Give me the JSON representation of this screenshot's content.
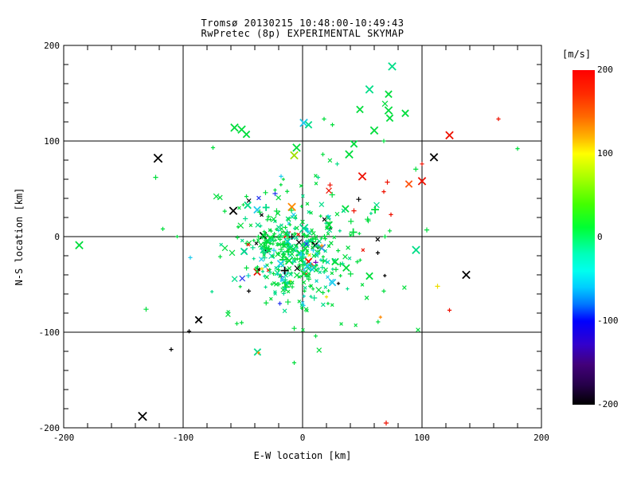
{
  "window": {
    "background": "#ffffff",
    "foreground": "#000000"
  },
  "title": {
    "line1": "Tromsø 20130215 10:48:00-10:49:43",
    "line2": "RwPretec (8p) EXPERIMENTAL SKYMAP"
  },
  "chart_data": {
    "type": "scatter",
    "title": "Tromsø 20130215 10:48:00-10:49:43",
    "subtitle": "RwPretec (8p) EXPERIMENTAL SKYMAP",
    "xlabel": "E-W location [km]",
    "ylabel": "N-S location [km]",
    "xlim": [
      -200,
      200
    ],
    "ylim": [
      -200,
      200
    ],
    "x_ticks": [
      -200,
      -100,
      0,
      100,
      200
    ],
    "y_ticks": [
      -200,
      -100,
      0,
      100,
      200
    ],
    "minor_tick_step": 20,
    "gridlines_at": [
      -100,
      0,
      100
    ],
    "grid": true,
    "legend_position": "right colorbar",
    "colorbar": {
      "unit": "[m/s]",
      "min": -200,
      "max": 200,
      "ticks": [
        200,
        100,
        0,
        -100,
        -200
      ],
      "stops": [
        [
          0.0,
          "#ff0000"
        ],
        [
          0.07,
          "#ff2a00"
        ],
        [
          0.14,
          "#ff6a00"
        ],
        [
          0.2,
          "#ffb300"
        ],
        [
          0.25,
          "#ffff00"
        ],
        [
          0.32,
          "#aaff00"
        ],
        [
          0.4,
          "#44ff00"
        ],
        [
          0.47,
          "#00ff33"
        ],
        [
          0.5,
          "#00ff66"
        ],
        [
          0.55,
          "#00ffbb"
        ],
        [
          0.6,
          "#00ffee"
        ],
        [
          0.65,
          "#00ccff"
        ],
        [
          0.7,
          "#0077ff"
        ],
        [
          0.75,
          "#0000ff"
        ],
        [
          0.82,
          "#3300cc"
        ],
        [
          0.88,
          "#42007a"
        ],
        [
          0.94,
          "#26004a"
        ],
        [
          1.0,
          "#000000"
        ]
      ]
    },
    "marker_colors": {
      "green": "#00dd3c",
      "spring": "#00dd88",
      "teal": "#00d4b8",
      "cyan": "#22ccee",
      "lightblue": "#3388ff",
      "blue": "#2233ee",
      "black": "#000000",
      "red": "#ee1100",
      "orangered": "#ff5511",
      "orange": "#ff8800",
      "yellow": "#eedd00",
      "yellowgreen": "#a0e000",
      "purple": "#7700bb"
    },
    "points": [
      [
        -121,
        82,
        "black",
        "x",
        9
      ],
      [
        -123,
        62,
        "green",
        "+",
        5
      ],
      [
        -75,
        93,
        "green",
        "+",
        4
      ],
      [
        -57,
        114,
        "green",
        "x",
        8
      ],
      [
        -51,
        112,
        "green",
        "x",
        8
      ],
      [
        -47,
        107,
        "green",
        "x",
        7
      ],
      [
        -5,
        93,
        "green",
        "x",
        8
      ],
      [
        -7,
        85,
        "yellowgreen",
        "x",
        8
      ],
      [
        -23,
        45,
        "blue",
        "+",
        5
      ],
      [
        -31,
        46,
        "green",
        "+",
        5
      ],
      [
        -47,
        42,
        "green",
        "+",
        4
      ],
      [
        -18,
        63,
        "cyan",
        "+",
        4
      ],
      [
        13,
        62,
        "spring",
        "+",
        4
      ],
      [
        23,
        54,
        "red",
        "+",
        5
      ],
      [
        50,
        63,
        "red",
        "x",
        8
      ],
      [
        17,
        86,
        "green",
        "+",
        4
      ],
      [
        39,
        86,
        "green",
        "x",
        8
      ],
      [
        43,
        97,
        "green",
        "x",
        7
      ],
      [
        29,
        76,
        "spring",
        "+",
        4
      ],
      [
        56,
        154,
        "spring",
        "x",
        8
      ],
      [
        48,
        133,
        "green",
        "x",
        7
      ],
      [
        1,
        119,
        "cyan",
        "x",
        8
      ],
      [
        5,
        117,
        "spring",
        "x",
        7
      ],
      [
        18,
        123,
        "green",
        "+",
        4
      ],
      [
        25,
        117,
        "green",
        "+",
        4
      ],
      [
        60,
        111,
        "green",
        "x",
        8
      ],
      [
        75,
        178,
        "spring",
        "x",
        8
      ],
      [
        72,
        149,
        "green",
        "x",
        7
      ],
      [
        69,
        139,
        "green",
        "x",
        6
      ],
      [
        72,
        132,
        "green",
        "x",
        8
      ],
      [
        73,
        124,
        "green",
        "x",
        7
      ],
      [
        86,
        129,
        "green",
        "x",
        7
      ],
      [
        164,
        123,
        "red",
        "+",
        4
      ],
      [
        123,
        106,
        "red",
        "x",
        8
      ],
      [
        68,
        100,
        "green",
        "+",
        4
      ],
      [
        110,
        83,
        "black",
        "x",
        8
      ],
      [
        100,
        76,
        "red",
        "+",
        4
      ],
      [
        180,
        92,
        "green",
        "+",
        4
      ],
      [
        71,
        57,
        "red",
        "+",
        5
      ],
      [
        89,
        55,
        "orangered",
        "x",
        7
      ],
      [
        100,
        58,
        "red",
        "x",
        8
      ],
      [
        74,
        23,
        "red",
        "+",
        4
      ],
      [
        68,
        47,
        "red",
        "+",
        4
      ],
      [
        73,
        6,
        "green",
        "+",
        4
      ],
      [
        104,
        7,
        "green",
        "+",
        5
      ],
      [
        69,
        0,
        "green",
        "+",
        4
      ],
      [
        95,
        -14,
        "spring",
        "x",
        8
      ],
      [
        137,
        -40,
        "black",
        "x",
        8
      ],
      [
        113,
        -52,
        "yellow",
        "+",
        5
      ],
      [
        123,
        -77,
        "red",
        "+",
        4
      ],
      [
        68,
        -57,
        "green",
        "+",
        4
      ],
      [
        -187,
        -9,
        "green",
        "x",
        8
      ],
      [
        -58,
        27,
        "black",
        "x",
        8
      ],
      [
        -117,
        8,
        "green",
        "+",
        4
      ],
      [
        -105,
        0,
        "green",
        "+",
        3
      ],
      [
        -65,
        -12,
        "green",
        "x",
        6
      ],
      [
        -59,
        -17,
        "green",
        "x",
        6
      ],
      [
        -94,
        -22,
        "cyan",
        "+",
        4
      ],
      [
        -69,
        -21,
        "green",
        "+",
        4
      ],
      [
        -131,
        -76,
        "green",
        "+",
        5
      ],
      [
        -87,
        -87,
        "black",
        "x",
        7
      ],
      [
        -95,
        -99,
        "black",
        "+",
        4
      ],
      [
        -134,
        -188,
        "black",
        "x",
        9
      ],
      [
        -110,
        -118,
        "black",
        "+",
        4
      ],
      [
        -55,
        -91,
        "green",
        "+",
        4
      ],
      [
        -51,
        -90,
        "green",
        "+",
        4
      ],
      [
        -7,
        -96,
        "green",
        "+",
        5
      ],
      [
        -7,
        -132,
        "green",
        "+",
        4
      ],
      [
        70,
        -195,
        "red",
        "+",
        5
      ],
      [
        11,
        -104,
        "green",
        "+",
        4
      ],
      [
        47,
        39,
        "black",
        "+",
        5
      ],
      [
        43,
        27,
        "red",
        "+",
        5
      ],
      [
        63,
        -17,
        "black",
        "+",
        4
      ],
      [
        -13,
        2,
        "red",
        "x",
        7
      ],
      [
        -33,
        1,
        "black",
        "x",
        7
      ],
      [
        -3,
        -6,
        "black",
        "x",
        6
      ],
      [
        16,
        -12,
        "lightblue",
        "x",
        8
      ],
      [
        5,
        -26,
        "red",
        "x",
        7
      ],
      [
        11,
        -27,
        "purple",
        "+",
        5
      ],
      [
        8,
        -30,
        "red",
        "+",
        4
      ],
      [
        1,
        -37,
        "yellow",
        "+",
        4
      ],
      [
        -18,
        -42,
        "blue",
        "+",
        5
      ],
      [
        -38,
        -37,
        "red",
        "x",
        7
      ],
      [
        -45,
        -57,
        "black",
        "+",
        4
      ],
      [
        -19,
        -70,
        "blue",
        "+",
        4
      ],
      [
        20,
        -63,
        "yellow",
        "+",
        3
      ],
      [
        25,
        -48,
        "cyan",
        "x",
        7
      ],
      [
        30,
        -49,
        "black",
        "+",
        3
      ],
      [
        1,
        -72,
        "cyan",
        "+",
        3
      ],
      [
        -9,
        31,
        "orange",
        "x",
        8
      ],
      [
        -38,
        28,
        "cyan",
        "x",
        7
      ],
      [
        23,
        8,
        "black",
        "+",
        4
      ],
      [
        62,
        33,
        "spring",
        "x",
        6
      ]
    ],
    "cluster": {
      "seed": 1337,
      "groups": [
        {
          "n": 290,
          "cx": -8,
          "cy": -20,
          "sx": 20,
          "sy": 24
        },
        {
          "n": 120,
          "cx": -5,
          "cy": -12,
          "sx": 42,
          "sy": 40
        }
      ],
      "color_weights": [
        [
          "green",
          0.6
        ],
        [
          "spring",
          0.23
        ],
        [
          "teal",
          0.05
        ],
        [
          "cyan",
          0.04
        ],
        [
          "black",
          0.02
        ],
        [
          "red",
          0.02
        ],
        [
          "yellow",
          0.01
        ],
        [
          "blue",
          0.01
        ],
        [
          "orange",
          0.01
        ],
        [
          "lightblue",
          0.01
        ]
      ],
      "marker_weights": [
        [
          "x",
          0.5
        ],
        [
          "+",
          0.5
        ]
      ],
      "size_range": [
        3,
        9
      ]
    }
  }
}
